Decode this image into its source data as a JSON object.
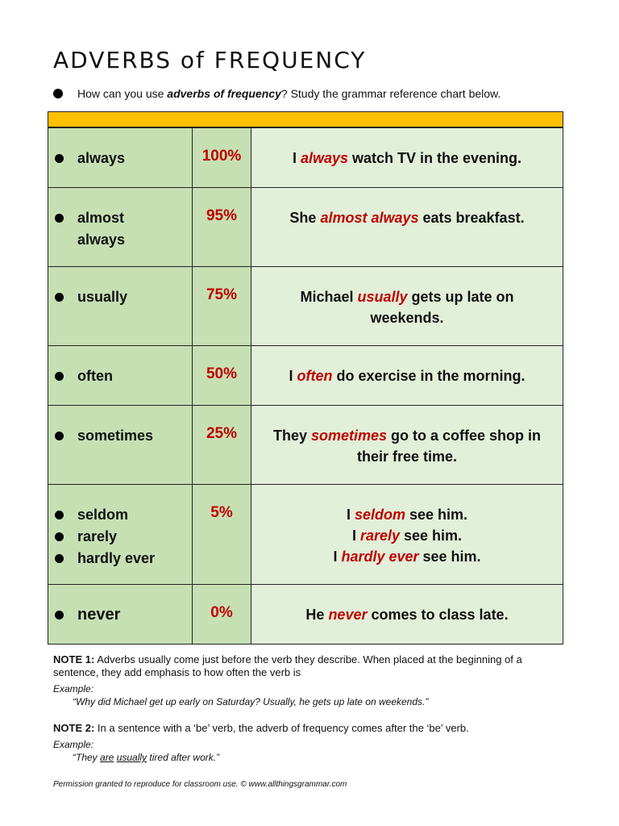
{
  "title": "ADVERBS of FREQUENCY",
  "intro": [
    "How can you use ",
    "adverbs of frequency",
    "?  Study the grammar reference chart below."
  ],
  "rows": [
    {
      "adverbs": [
        "always"
      ],
      "percent": "100%",
      "examples": [
        [
          "I ",
          "always",
          " watch TV in the evening."
        ]
      ]
    },
    {
      "adverbs": [
        "almost always"
      ],
      "percent": "95%",
      "examples": [
        [
          "She ",
          "almost always",
          " eats breakfast."
        ]
      ]
    },
    {
      "adverbs": [
        "usually"
      ],
      "percent": "75%",
      "examples": [
        [
          "Michael ",
          "usually",
          " gets up late on weekends."
        ]
      ]
    },
    {
      "adverbs": [
        "often"
      ],
      "percent": "50%",
      "examples": [
        [
          "I ",
          "often",
          " do exercise in the morning."
        ]
      ]
    },
    {
      "adverbs": [
        "sometimes"
      ],
      "percent": "25%",
      "examples": [
        [
          "They ",
          "sometimes",
          " go to a coffee shop in their free time."
        ]
      ]
    },
    {
      "adverbs": [
        "seldom",
        "rarely",
        "hardly ever"
      ],
      "percent": "5%",
      "examples": [
        [
          "I ",
          "seldom",
          " see him."
        ],
        [
          "I ",
          "rarely",
          " see him."
        ],
        [
          "I ",
          "hardly ever",
          " see him."
        ]
      ]
    },
    {
      "adverbs": [
        "never"
      ],
      "percent": "0%",
      "examples": [
        [
          "He ",
          "never",
          " comes to class late."
        ]
      ]
    }
  ],
  "notes": [
    {
      "label": "NOTE 1:",
      "text": "Adverbs usually come just before the verb they describe.  When placed at the beginning of a sentence, they add emphasis to how often the verb is",
      "example_label": "Example:",
      "example": [
        "“Why did Michael get up early on Saturday?  Usually, he gets up late on weekends.”"
      ]
    },
    {
      "label": "NOTE 2:",
      "text": "In a sentence with a ‘be’ verb, the adverb of frequency comes after the ‘be’ verb.",
      "example_label": "Example:",
      "example": [
        "“They ",
        "are",
        " ",
        "usually",
        " tired after work.”"
      ]
    }
  ],
  "footer": "Permission granted to reproduce for classroom use.  © www.allthingsgrammar.com"
}
